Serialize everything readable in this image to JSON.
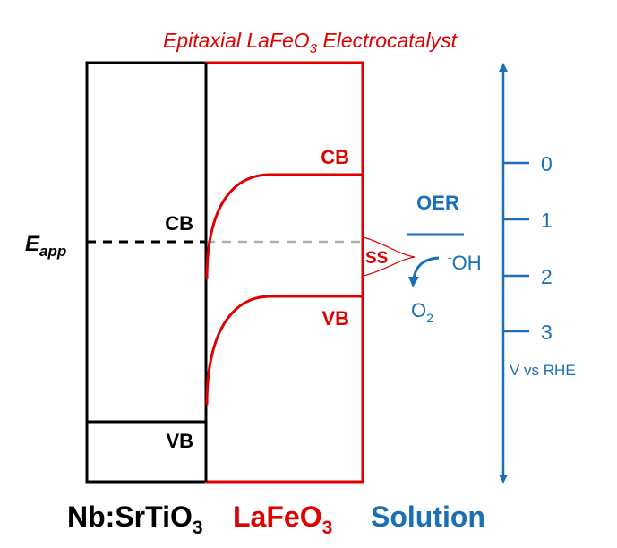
{
  "title": {
    "main": "Epitaxial LaFeO",
    "sub": "3",
    "rest": " Electrocatalyst"
  },
  "substrate": {
    "cb": "CB",
    "vb": "VB",
    "label": "Nb:SrTiO",
    "label_sub": "3"
  },
  "film": {
    "cb": "CB",
    "vb": "VB",
    "ss": "SS",
    "label": "LaFeO",
    "label_sub": "3"
  },
  "solution": {
    "label": "Solution",
    "oer": "OER",
    "oh_sup": "-",
    "oh": "OH",
    "o2": "O",
    "o2_sub": "2"
  },
  "e_app": {
    "main": "E",
    "sub": "app"
  },
  "scale": {
    "ticks": [
      "0",
      "1",
      "2",
      "3"
    ],
    "unit": "V vs RHE"
  },
  "colors": {
    "red": "#e00000",
    "blue": "#1a6fb5",
    "black": "#000000",
    "gray": "#b0b0b0"
  }
}
